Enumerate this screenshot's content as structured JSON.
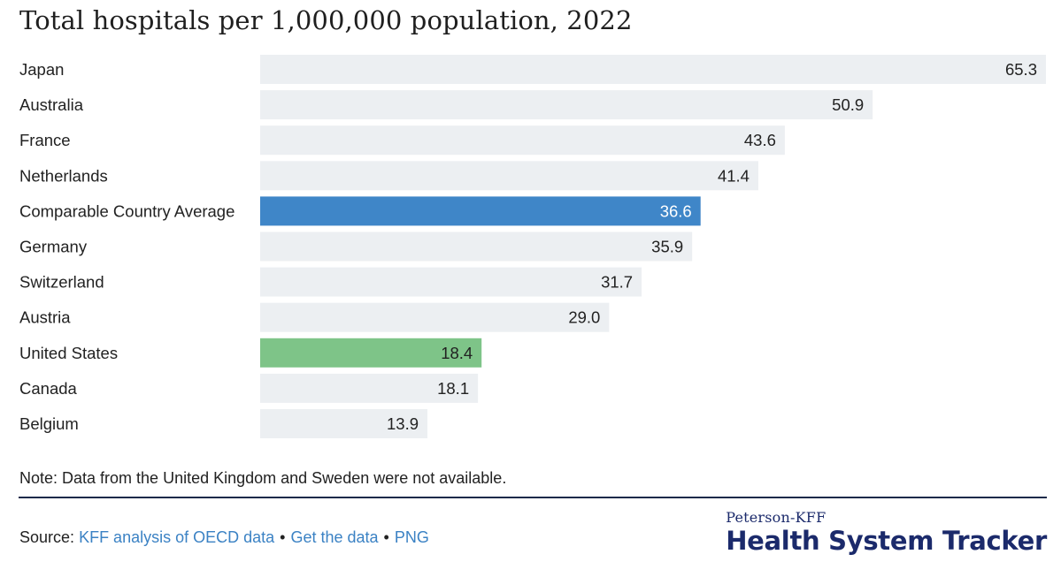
{
  "title": "Total hospitals per 1,000,000 population, 2022",
  "note": "Note: Data from the United Kingdom and Sweden were not available.",
  "source": {
    "label": "Source:",
    "links": [
      "KFF analysis of OECD data",
      "Get the data",
      "PNG"
    ],
    "separator": "•"
  },
  "brand": {
    "top": "Peterson-KFF",
    "main": "Health System Tracker"
  },
  "colors": {
    "default_bar": "#eceff2",
    "average_bar": "#3f86c8",
    "us_bar": "#7ec488",
    "brand": "#1b2a6b",
    "link": "#3b82c4"
  },
  "chart_data": {
    "type": "bar",
    "orientation": "horizontal",
    "title": "Total hospitals per 1,000,000 population, 2022",
    "categories": [
      "Japan",
      "Australia",
      "France",
      "Netherlands",
      "Comparable Country Average",
      "Germany",
      "Switzerland",
      "Austria",
      "United States",
      "Canada",
      "Belgium"
    ],
    "values": [
      65.3,
      50.9,
      43.6,
      41.4,
      36.6,
      35.9,
      31.7,
      29.0,
      18.4,
      18.1,
      13.9
    ],
    "value_labels": [
      "65.3",
      "50.9",
      "43.6",
      "41.4",
      "36.6",
      "35.9",
      "31.7",
      "29.0",
      "18.4",
      "18.1",
      "13.9"
    ],
    "highlights": {
      "Comparable Country Average": "average",
      "United States": "us"
    },
    "xlim": [
      0,
      65.3
    ],
    "grid": false,
    "legend": "none"
  }
}
